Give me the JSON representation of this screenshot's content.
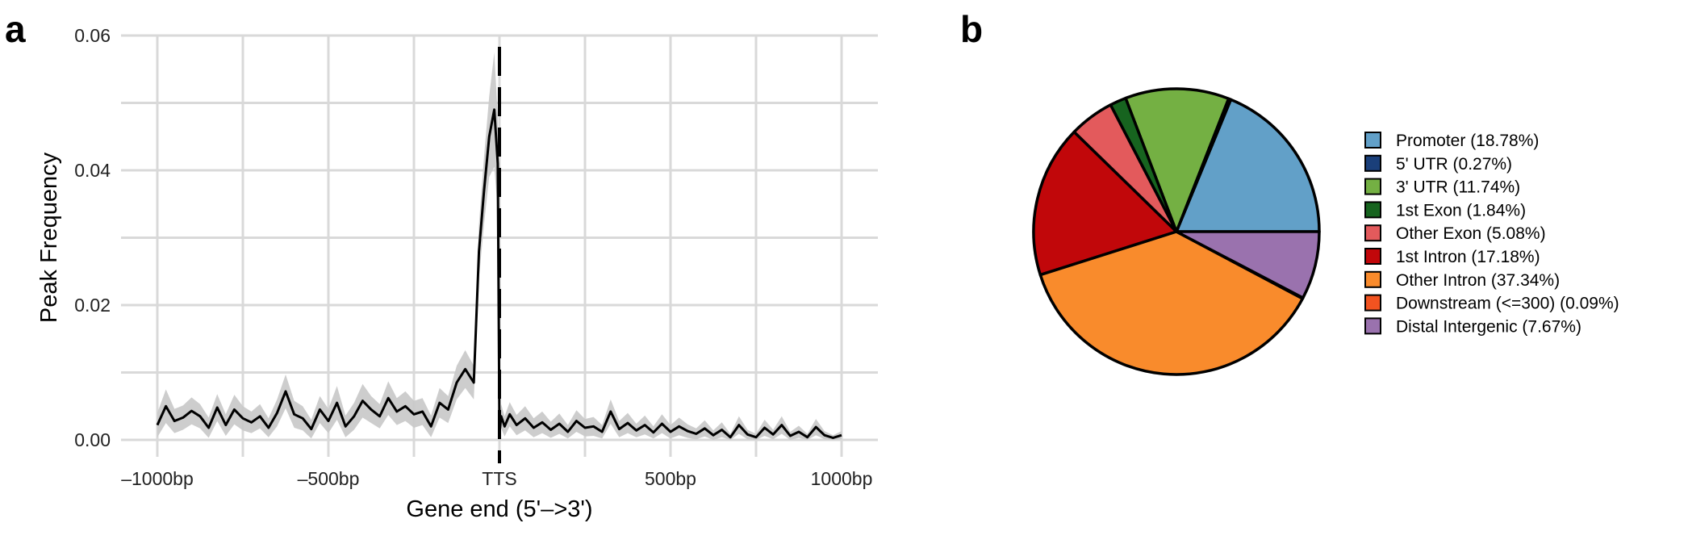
{
  "panels": {
    "a_label": "a",
    "b_label": "b"
  },
  "chart_data": [
    {
      "type": "line",
      "panel": "a",
      "title": "",
      "xlabel": "Gene end (5'–>3')",
      "ylabel": "Peak Frequency",
      "xlim": [
        -1000,
        1000
      ],
      "ylim": [
        0,
        0.06
      ],
      "grid": true,
      "x_ticks": [
        {
          "value": -1000,
          "label": "–1000bp"
        },
        {
          "value": -500,
          "label": "–500bp"
        },
        {
          "value": 0,
          "label": "TTS"
        },
        {
          "value": 500,
          "label": "500bp"
        },
        {
          "value": 1000,
          "label": "1000bp"
        }
      ],
      "y_ticks": [
        {
          "value": 0.0,
          "label": "0.00"
        },
        {
          "value": 0.02,
          "label": "0.02"
        },
        {
          "value": 0.04,
          "label": "0.04"
        },
        {
          "value": 0.06,
          "label": "0.06"
        }
      ],
      "reference_line": {
        "x": 0,
        "style": "dashed"
      },
      "series": [
        {
          "color": "#000000",
          "band_color": "#c8c8c8",
          "x": [
            -1000,
            -975,
            -950,
            -925,
            -900,
            -875,
            -850,
            -825,
            -800,
            -775,
            -750,
            -725,
            -700,
            -675,
            -650,
            -625,
            -600,
            -575,
            -550,
            -525,
            -500,
            -475,
            -450,
            -425,
            -400,
            -375,
            -350,
            -325,
            -300,
            -275,
            -250,
            -225,
            -200,
            -175,
            -150,
            -125,
            -100,
            -75,
            -60,
            -45,
            -30,
            -15,
            -5,
            0,
            5,
            15,
            30,
            50,
            75,
            100,
            125,
            150,
            175,
            200,
            225,
            250,
            275,
            300,
            325,
            350,
            375,
            400,
            425,
            450,
            475,
            500,
            525,
            550,
            575,
            600,
            625,
            650,
            675,
            700,
            725,
            750,
            775,
            800,
            825,
            850,
            875,
            900,
            925,
            950,
            975,
            1000
          ],
          "y": [
            0.0022,
            0.005,
            0.0028,
            0.0033,
            0.0043,
            0.0035,
            0.0018,
            0.0048,
            0.0022,
            0.0045,
            0.0032,
            0.0026,
            0.0035,
            0.0018,
            0.004,
            0.0072,
            0.0038,
            0.0032,
            0.0016,
            0.0045,
            0.0028,
            0.0055,
            0.002,
            0.0035,
            0.0058,
            0.0045,
            0.0035,
            0.0062,
            0.0042,
            0.005,
            0.0038,
            0.0042,
            0.002,
            0.0055,
            0.0045,
            0.0085,
            0.0105,
            0.0085,
            0.028,
            0.037,
            0.045,
            0.049,
            0.041,
            0.001,
            0.0035,
            0.002,
            0.0038,
            0.0022,
            0.0032,
            0.0018,
            0.0026,
            0.0015,
            0.0024,
            0.0012,
            0.0028,
            0.0018,
            0.002,
            0.0012,
            0.0042,
            0.0016,
            0.0025,
            0.0014,
            0.0022,
            0.0011,
            0.0024,
            0.0012,
            0.002,
            0.0013,
            0.0009,
            0.0017,
            0.0007,
            0.0015,
            0.0004,
            0.0022,
            0.0008,
            0.0004,
            0.0018,
            0.0008,
            0.0022,
            0.0006,
            0.0012,
            0.0004,
            0.0019,
            0.0007,
            0.0003,
            0.0007
          ],
          "band": [
            0.0018,
            0.0025,
            0.0018,
            0.0018,
            0.002,
            0.0018,
            0.0015,
            0.002,
            0.0016,
            0.0022,
            0.0018,
            0.0016,
            0.0018,
            0.0014,
            0.002,
            0.0025,
            0.002,
            0.0018,
            0.0014,
            0.002,
            0.0018,
            0.0025,
            0.0016,
            0.002,
            0.0025,
            0.002,
            0.0018,
            0.0025,
            0.002,
            0.0022,
            0.002,
            0.002,
            0.0016,
            0.0022,
            0.002,
            0.0025,
            0.0028,
            0.0025,
            0.004,
            0.005,
            0.006,
            0.0085,
            0.007,
            0.001,
            0.0018,
            0.0015,
            0.0018,
            0.0015,
            0.0018,
            0.0014,
            0.0016,
            0.0012,
            0.0015,
            0.001,
            0.0016,
            0.0013,
            0.0014,
            0.001,
            0.0018,
            0.0012,
            0.0015,
            0.001,
            0.0014,
            0.0009,
            0.0014,
            0.001,
            0.0013,
            0.001,
            0.0008,
            0.0012,
            0.0007,
            0.0011,
            0.0005,
            0.0013,
            0.0007,
            0.0005,
            0.0012,
            0.0007,
            0.0013,
            0.0006,
            0.0009,
            0.0005,
            0.0012,
            0.0006,
            0.0004,
            0.0006
          ]
        }
      ]
    },
    {
      "type": "pie",
      "panel": "b",
      "title": "",
      "legend_position": "right",
      "slices": [
        {
          "label": "Promoter (18.78%)",
          "value": 18.78,
          "color": "#62a0c8"
        },
        {
          "label": "5' UTR (0.27%)",
          "value": 0.27,
          "color": "#1a3f7a"
        },
        {
          "label": "3' UTR (11.74%)",
          "value": 11.74,
          "color": "#74b043"
        },
        {
          "label": "1st Exon (1.84%)",
          "value": 1.84,
          "color": "#17641f"
        },
        {
          "label": "Other Exon (5.08%)",
          "value": 5.08,
          "color": "#e35a5c"
        },
        {
          "label": "1st Intron (17.18%)",
          "value": 17.18,
          "color": "#c1070a"
        },
        {
          "label": "Other Intron (37.34%)",
          "value": 37.34,
          "color": "#f98b2c"
        },
        {
          "label": "Downstream (<=300) (0.09%)",
          "value": 0.09,
          "color": "#f25320"
        },
        {
          "label": "Distal Intergenic (7.67%)",
          "value": 7.67,
          "color": "#9a72ae"
        }
      ]
    }
  ]
}
